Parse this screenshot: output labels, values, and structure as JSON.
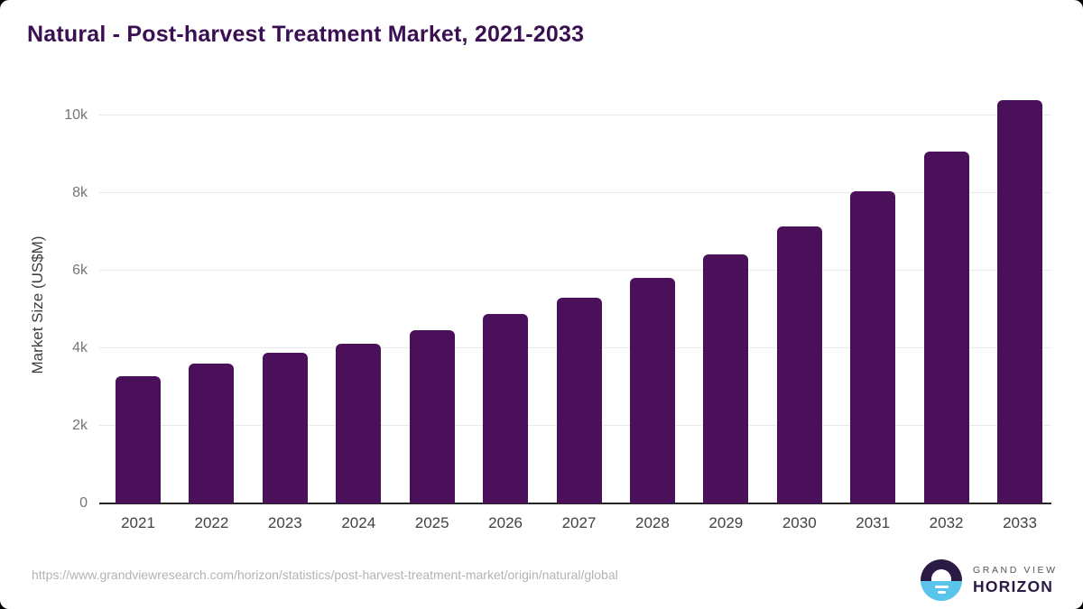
{
  "page": {
    "title": "Natural - Post-harvest Treatment Market, 2021-2033"
  },
  "chart_data": {
    "type": "bar",
    "title": "Natural - Post-harvest Treatment Market, 2021-2033",
    "xlabel": "",
    "ylabel": "Market Size (US$M)",
    "categories": [
      "2021",
      "2022",
      "2023",
      "2024",
      "2025",
      "2026",
      "2027",
      "2028",
      "2029",
      "2030",
      "2031",
      "2032",
      "2033"
    ],
    "values": [
      3280,
      3600,
      3890,
      4120,
      4470,
      4880,
      5310,
      5820,
      6420,
      7150,
      8040,
      9070,
      10390
    ],
    "ylim": [
      0,
      10000
    ],
    "ytick_values": [
      0,
      2000,
      4000,
      6000,
      8000,
      10000
    ],
    "ytick_labels": [
      "0",
      "2k",
      "4k",
      "6k",
      "8k",
      "10k"
    ],
    "grid": "horizontal",
    "legend": "none",
    "bar_color": "#4a1059"
  },
  "footer": {
    "source_url": "https://www.grandviewresearch.com/horizon/statistics/post-harvest-treatment-market/origin/natural/global",
    "logo": {
      "line1": "GRAND VIEW",
      "line2": "HORIZON"
    }
  },
  "colors": {
    "title": "#3b1053",
    "bar": "#4a1059",
    "logo_purple": "#2b1b44",
    "logo_blue": "#5ac4ea",
    "ytick_text": "#757575",
    "xtick_text": "#424242",
    "gridline": "#e9e9e9",
    "axis_line": "#262626",
    "url_text": "#b3b3b3"
  }
}
